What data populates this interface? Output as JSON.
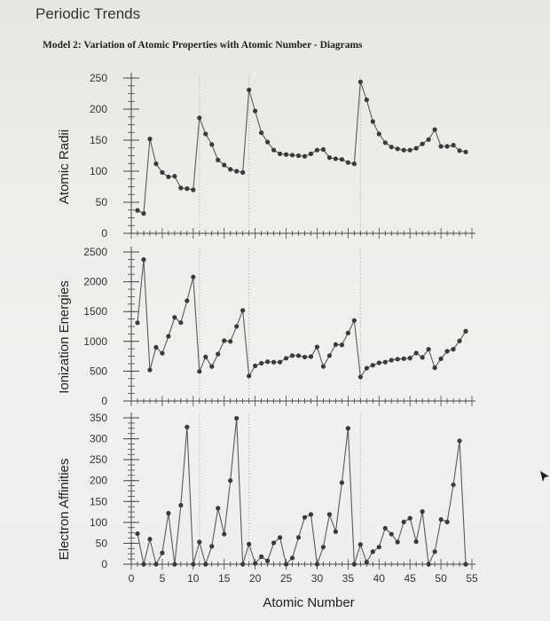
{
  "page": {
    "heading": "Periodic Trends",
    "model_title": "Model 2: Variation of Atomic Properties with Atomic Number - Diagrams"
  },
  "colors": {
    "marker": "#3a3a3a",
    "line": "#5a5a5a",
    "axis": "#444444",
    "grid": "#b8b8b8"
  },
  "chart_data": [
    {
      "type": "line",
      "ylabel": "Atomic Radii",
      "ylim": [
        0,
        250
      ],
      "yticks": [
        "250",
        "200",
        "150",
        "100",
        "50",
        "0"
      ],
      "xlim": [
        0,
        55
      ],
      "grid": "dotted vertical lines at period boundaries",
      "series": [
        {
          "x": [
            1,
            2,
            3,
            4,
            5,
            6,
            7,
            8,
            9,
            10,
            11,
            12,
            13,
            14,
            15,
            16,
            17,
            18,
            19,
            20,
            21,
            22,
            23,
            24,
            25,
            26,
            27,
            28,
            29,
            30,
            31,
            32,
            33,
            34,
            35,
            36,
            37,
            38,
            39,
            40,
            41,
            42,
            43,
            44,
            45,
            46,
            47,
            48,
            49,
            50,
            51,
            52,
            53,
            54
          ],
          "values": [
            37,
            32,
            152,
            112,
            98,
            91,
            92,
            73,
            72,
            70,
            186,
            160,
            143,
            118,
            110,
            103,
            100,
            98,
            231,
            197,
            162,
            147,
            134,
            128,
            127,
            126,
            125,
            124,
            128,
            134,
            135,
            122,
            120,
            119,
            114,
            112,
            244,
            215,
            180,
            160,
            146,
            139,
            136,
            134,
            134,
            137,
            144,
            151,
            167,
            140,
            140,
            142,
            133,
            131
          ]
        }
      ]
    },
    {
      "type": "line",
      "ylabel": "Ionization Energies",
      "ylim": [
        0,
        2500
      ],
      "yticks": [
        "2500",
        "2000",
        "1500",
        "1000",
        "500",
        "0"
      ],
      "xlim": [
        0,
        55
      ],
      "series": [
        {
          "x": [
            1,
            2,
            3,
            4,
            5,
            6,
            7,
            8,
            9,
            10,
            11,
            12,
            13,
            14,
            15,
            16,
            17,
            18,
            19,
            20,
            21,
            22,
            23,
            24,
            25,
            26,
            27,
            28,
            29,
            30,
            31,
            32,
            33,
            34,
            35,
            36,
            37,
            38,
            39,
            40,
            41,
            42,
            43,
            44,
            45,
            46,
            47,
            48,
            49,
            50,
            51,
            52,
            53,
            54
          ],
          "values": [
            1312,
            2372,
            520,
            900,
            801,
            1086,
            1402,
            1314,
            1681,
            2081,
            496,
            738,
            578,
            787,
            1012,
            1000,
            1251,
            1521,
            419,
            590,
            633,
            659,
            651,
            653,
            717,
            762,
            760,
            737,
            745,
            906,
            579,
            762,
            947,
            941,
            1140,
            1351,
            403,
            550,
            600,
            640,
            652,
            684,
            702,
            710,
            720,
            804,
            731,
            868,
            558,
            709,
            834,
            869,
            1008,
            1170
          ]
        }
      ]
    },
    {
      "type": "line",
      "ylabel": "Electron Affinities",
      "ylim": [
        0,
        350
      ],
      "yticks": [
        "350",
        "300",
        "250",
        "200",
        "150",
        "100",
        "50",
        "0"
      ],
      "xlim": [
        0,
        55
      ],
      "xticks": [
        "0",
        "5",
        "10",
        "15",
        "20",
        "25",
        "30",
        "35",
        "40",
        "45",
        "50",
        "55"
      ],
      "xlabel": "Atomic Number",
      "series": [
        {
          "x": [
            1,
            2,
            3,
            4,
            5,
            6,
            7,
            8,
            9,
            10,
            11,
            12,
            13,
            14,
            15,
            16,
            17,
            18,
            19,
            20,
            21,
            22,
            23,
            24,
            25,
            26,
            27,
            28,
            29,
            30,
            31,
            32,
            33,
            34,
            35,
            36,
            37,
            38,
            39,
            40,
            41,
            42,
            43,
            44,
            45,
            46,
            47,
            48,
            49,
            50,
            51,
            52,
            53,
            54
          ],
          "values": [
            73,
            0,
            60,
            0,
            27,
            122,
            0,
            141,
            328,
            0,
            53,
            0,
            43,
            134,
            72,
            200,
            349,
            0,
            48,
            2,
            18,
            8,
            51,
            64,
            0,
            15,
            64,
            112,
            119,
            0,
            41,
            119,
            78,
            195,
            325,
            0,
            47,
            5,
            30,
            41,
            86,
            72,
            53,
            101,
            110,
            54,
            126,
            0,
            30,
            107,
            101,
            190,
            295,
            0
          ]
        }
      ]
    }
  ]
}
